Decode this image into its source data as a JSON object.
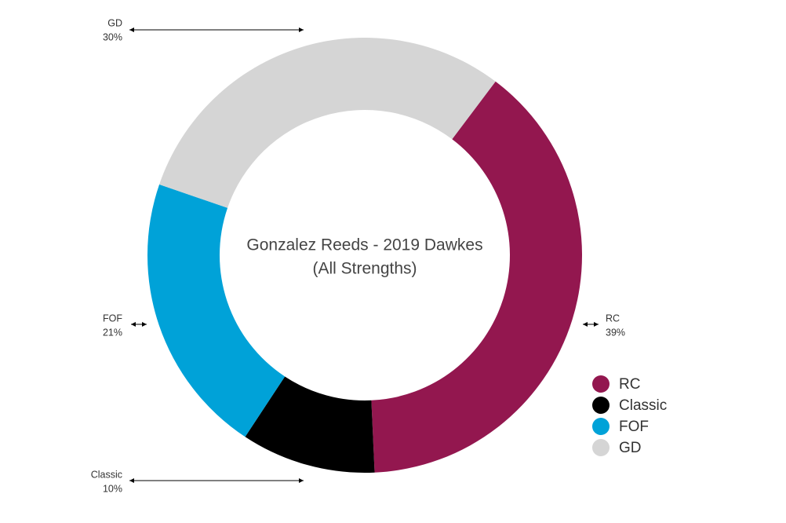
{
  "chart_data": {
    "type": "donut",
    "title": [
      "Gonzalez Reeds - 2019 Dawkes",
      "(All Strengths)"
    ],
    "categories": [
      "RC",
      "Classic",
      "FOF",
      "GD"
    ],
    "values": [
      39,
      10,
      21,
      30
    ],
    "value_labels": [
      "39%",
      "10%",
      "21%",
      "30%"
    ],
    "colors": [
      "#93174f",
      "#000000",
      "#00a2d8",
      "#d5d5d5"
    ],
    "legend": "right"
  }
}
